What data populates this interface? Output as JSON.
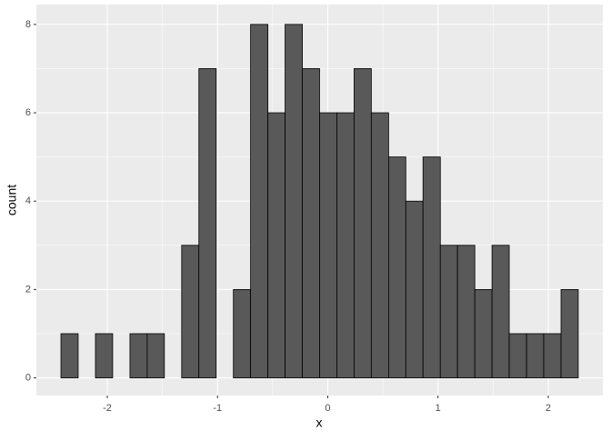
{
  "chart_data": {
    "type": "histogram",
    "x_label": "x",
    "y_label": "count",
    "bins": [
      -2.42,
      -2.264,
      -2.107,
      -1.951,
      -1.794,
      -1.638,
      -1.482,
      -1.325,
      -1.169,
      -1.012,
      -0.856,
      -0.7,
      -0.543,
      -0.387,
      -0.23,
      -0.074,
      0.082,
      0.239,
      0.395,
      0.552,
      0.708,
      0.864,
      1.021,
      1.177,
      1.334,
      1.49,
      1.646,
      1.803,
      1.959,
      2.116,
      2.272
    ],
    "counts": [
      1,
      0,
      1,
      0,
      1,
      1,
      0,
      3,
      7,
      0,
      2,
      8,
      6,
      8,
      7,
      6,
      6,
      7,
      6,
      5,
      4,
      5,
      3,
      3,
      2,
      3,
      1,
      1,
      1,
      2
    ],
    "color": "#595959",
    "edge_color": "#000000",
    "xlim": [
      -2.643,
      2.495
    ],
    "xticks": [
      -2,
      -1,
      0,
      1,
      2
    ],
    "ylim": [
      -0.4,
      8.45
    ],
    "yticks": [
      0,
      2,
      4,
      6,
      8
    ],
    "grid": true
  }
}
